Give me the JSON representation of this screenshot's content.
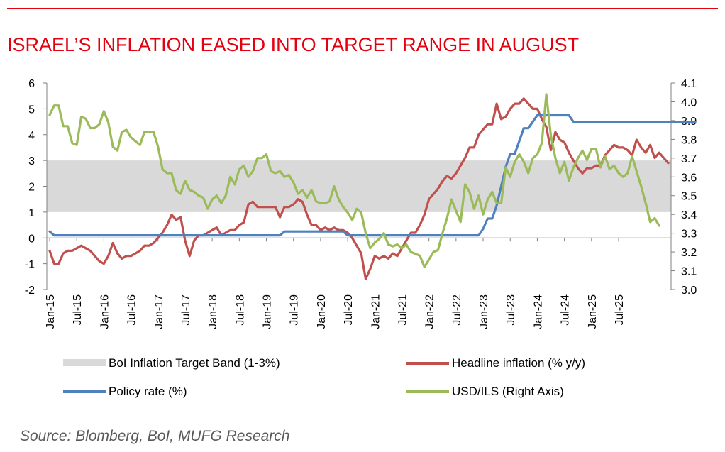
{
  "title": "ISRAEL’S INFLATION EASED INTO TARGET RANGE IN AUGUST",
  "source": "Source: Blomberg, BoI, MUFG Research",
  "colors": {
    "brand_red": "#e3000f",
    "band": "#d9d9d9",
    "headline": "#c0504d",
    "policy": "#4f81bd",
    "usdils": "#9bbb59"
  },
  "chart_data": {
    "type": "line",
    "left_axis": {
      "min": -2,
      "max": 6,
      "ticks": [
        "-2",
        "-1",
        "0",
        "1",
        "2",
        "3",
        "4",
        "5",
        "6"
      ]
    },
    "right_axis": {
      "min": 3.0,
      "max": 4.1,
      "ticks": [
        "3.0",
        "3.1",
        "3.2",
        "3.3",
        "3.4",
        "3.5",
        "3.6",
        "3.7",
        "3.8",
        "3.9",
        "4.0",
        "4.1"
      ]
    },
    "x_ticks": [
      "Jan-15",
      "Jul-15",
      "Jan-16",
      "Jul-16",
      "Jan-17",
      "Jul-17",
      "Jan-18",
      "Jul-18",
      "Jan-19",
      "Jul-19",
      "Jan-20",
      "Jul-20",
      "Jan-21",
      "Jul-21",
      "Jan-22",
      "Jul-22",
      "Jan-23",
      "Jul-23",
      "Jan-24",
      "Jul-24",
      "Jan-25",
      "Jul-25"
    ],
    "grid": false,
    "band": {
      "name": "BoI Inflation Target Band (1-3%)",
      "low": 1,
      "high": 3
    },
    "series": [
      {
        "name": "Headline inflation (% y/y)",
        "axis": "left",
        "color": "#c0504d",
        "values": [
          -0.5,
          -1.0,
          -1.0,
          -0.6,
          -0.5,
          -0.5,
          -0.4,
          -0.3,
          -0.4,
          -0.5,
          -0.7,
          -0.9,
          -1.0,
          -0.7,
          -0.2,
          -0.6,
          -0.8,
          -0.7,
          -0.7,
          -0.6,
          -0.5,
          -0.3,
          -0.3,
          -0.2,
          0.0,
          0.2,
          0.5,
          0.9,
          0.7,
          0.8,
          -0.1,
          -0.7,
          -0.1,
          0.1,
          0.1,
          0.2,
          0.3,
          0.4,
          0.1,
          0.2,
          0.3,
          0.3,
          0.5,
          0.6,
          1.3,
          1.4,
          1.2,
          1.2,
          1.2,
          1.2,
          1.2,
          0.8,
          1.2,
          1.2,
          1.3,
          1.5,
          1.4,
          0.9,
          0.5,
          0.5,
          0.3,
          0.4,
          0.3,
          0.4,
          0.3,
          0.3,
          0.2,
          0.0,
          -0.3,
          -0.6,
          -1.6,
          -1.2,
          -0.7,
          -0.8,
          -0.7,
          -0.8,
          -0.6,
          -0.7,
          -0.4,
          -0.1,
          0.2,
          0.2,
          0.5,
          0.9,
          1.5,
          1.7,
          1.9,
          2.2,
          2.4,
          2.3,
          2.5,
          2.8,
          3.1,
          3.5,
          3.5,
          4.0,
          4.2,
          4.4,
          4.4,
          5.2,
          4.6,
          4.7,
          5.0,
          5.2,
          5.2,
          5.4,
          5.2,
          5.0,
          5.0,
          4.6,
          4.3,
          3.4,
          4.1,
          3.8,
          3.7,
          3.3,
          3.0,
          2.7,
          2.5,
          2.7,
          2.7,
          2.8,
          2.8,
          3.2,
          3.4,
          3.6,
          3.5,
          3.5,
          3.4,
          3.2,
          3.8,
          3.5,
          3.3,
          3.6,
          3.1,
          3.3,
          3.1,
          2.9
        ]
      },
      {
        "name": "Policy rate (%)",
        "axis": "left",
        "color": "#4f81bd",
        "values": [
          0.25,
          0.1,
          0.1,
          0.1,
          0.1,
          0.1,
          0.1,
          0.1,
          0.1,
          0.1,
          0.1,
          0.1,
          0.1,
          0.1,
          0.1,
          0.1,
          0.1,
          0.1,
          0.1,
          0.1,
          0.1,
          0.1,
          0.1,
          0.1,
          0.1,
          0.1,
          0.1,
          0.1,
          0.1,
          0.1,
          0.1,
          0.1,
          0.1,
          0.1,
          0.1,
          0.1,
          0.1,
          0.1,
          0.1,
          0.1,
          0.1,
          0.1,
          0.1,
          0.1,
          0.1,
          0.1,
          0.1,
          0.1,
          0.1,
          0.1,
          0.1,
          0.1,
          0.25,
          0.25,
          0.25,
          0.25,
          0.25,
          0.25,
          0.25,
          0.25,
          0.25,
          0.25,
          0.25,
          0.25,
          0.25,
          0.25,
          0.1,
          0.1,
          0.1,
          0.1,
          0.1,
          0.1,
          0.1,
          0.1,
          0.1,
          0.1,
          0.1,
          0.1,
          0.1,
          0.1,
          0.1,
          0.1,
          0.1,
          0.1,
          0.1,
          0.1,
          0.1,
          0.1,
          0.1,
          0.1,
          0.1,
          0.1,
          0.1,
          0.1,
          0.1,
          0.1,
          0.35,
          0.75,
          0.75,
          1.25,
          2.0,
          2.75,
          3.25,
          3.25,
          3.75,
          4.25,
          4.25,
          4.5,
          4.75,
          4.75,
          4.75,
          4.75,
          4.75,
          4.75,
          4.75,
          4.75,
          4.5,
          4.5,
          4.5,
          4.5,
          4.5,
          4.5,
          4.5,
          4.5,
          4.5,
          4.5,
          4.5,
          4.5,
          4.5,
          4.5,
          4.5,
          4.5,
          4.5,
          4.5,
          4.5,
          4.5,
          4.5,
          4.5,
          4.5,
          4.5,
          4.5,
          4.5,
          4.5,
          4.5
        ]
      },
      {
        "name": "USD/ILS (Right Axis)",
        "axis": "right",
        "color": "#9bbb59",
        "values": [
          3.93,
          3.98,
          3.98,
          3.87,
          3.87,
          3.78,
          3.77,
          3.92,
          3.91,
          3.86,
          3.86,
          3.88,
          3.95,
          3.89,
          3.76,
          3.74,
          3.84,
          3.85,
          3.81,
          3.79,
          3.77,
          3.84,
          3.84,
          3.84,
          3.76,
          3.64,
          3.62,
          3.62,
          3.53,
          3.51,
          3.58,
          3.53,
          3.52,
          3.5,
          3.49,
          3.43,
          3.48,
          3.5,
          3.46,
          3.5,
          3.6,
          3.56,
          3.64,
          3.66,
          3.6,
          3.63,
          3.7,
          3.7,
          3.72,
          3.63,
          3.62,
          3.63,
          3.6,
          3.61,
          3.57,
          3.51,
          3.53,
          3.49,
          3.53,
          3.47,
          3.46,
          3.46,
          3.47,
          3.55,
          3.48,
          3.44,
          3.41,
          3.37,
          3.43,
          3.41,
          3.3,
          3.22,
          3.25,
          3.27,
          3.3,
          3.24,
          3.23,
          3.24,
          3.22,
          3.24,
          3.2,
          3.19,
          3.18,
          3.12,
          3.16,
          3.2,
          3.21,
          3.3,
          3.38,
          3.48,
          3.42,
          3.36,
          3.56,
          3.52,
          3.43,
          3.5,
          3.4,
          3.48,
          3.52,
          3.46,
          3.46,
          3.65,
          3.6,
          3.68,
          3.72,
          3.68,
          3.62,
          3.7,
          3.72,
          3.78,
          4.04,
          3.82,
          3.7,
          3.62,
          3.68,
          3.58,
          3.65,
          3.7,
          3.74,
          3.69,
          3.75,
          3.75,
          3.65,
          3.71,
          3.64,
          3.66,
          3.62,
          3.6,
          3.62,
          3.71,
          3.63,
          3.55,
          3.46,
          3.36,
          3.38,
          3.34
        ]
      }
    ]
  }
}
